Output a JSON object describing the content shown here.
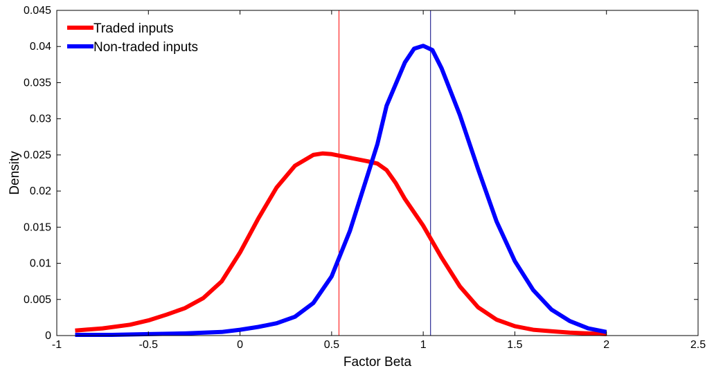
{
  "chart_data": {
    "type": "line",
    "title": "",
    "xlabel": "Factor Beta",
    "ylabel": "Density",
    "xlim": [
      -1,
      2.5
    ],
    "ylim": [
      0,
      0.045
    ],
    "xticks": [
      -1,
      -0.5,
      0,
      0.5,
      1,
      1.5,
      2,
      2.5
    ],
    "xtick_labels": [
      "-1",
      "-0.5",
      "0",
      "0.5",
      "1",
      "1.5",
      "2",
      "2.5"
    ],
    "yticks": [
      0,
      0.005,
      0.01,
      0.015,
      0.02,
      0.025,
      0.03,
      0.035,
      0.04,
      0.045
    ],
    "ytick_labels": [
      "0",
      "0.005",
      "0.01",
      "0.015",
      "0.02",
      "0.025",
      "0.03",
      "0.035",
      "0.04",
      "0.045"
    ],
    "grid": false,
    "legend_position": "top-left",
    "series": [
      {
        "name": "Traded inputs",
        "color": "#ff0000",
        "x": [
          -0.9,
          -0.75,
          -0.6,
          -0.5,
          -0.4,
          -0.3,
          -0.2,
          -0.1,
          0,
          0.1,
          0.2,
          0.3,
          0.4,
          0.45,
          0.5,
          0.6,
          0.7,
          0.75,
          0.8,
          0.85,
          0.9,
          1.0,
          1.1,
          1.2,
          1.3,
          1.4,
          1.5,
          1.6,
          1.7,
          1.8,
          1.9,
          2.0
        ],
        "y": [
          0.0007,
          0.001,
          0.0015,
          0.0021,
          0.0029,
          0.0038,
          0.0052,
          0.0075,
          0.0115,
          0.0162,
          0.0205,
          0.0235,
          0.025,
          0.0252,
          0.0251,
          0.0246,
          0.0241,
          0.0238,
          0.0229,
          0.0211,
          0.0189,
          0.0152,
          0.0108,
          0.0068,
          0.0039,
          0.0022,
          0.0013,
          0.0008,
          0.0006,
          0.0004,
          0.0003,
          0.0002
        ]
      },
      {
        "name": "Non-traded inputs",
        "color": "#0000ff",
        "x": [
          -0.9,
          -0.7,
          -0.5,
          -0.3,
          -0.1,
          0,
          0.1,
          0.2,
          0.3,
          0.4,
          0.5,
          0.6,
          0.7,
          0.75,
          0.8,
          0.9,
          0.95,
          1.0,
          1.05,
          1.1,
          1.2,
          1.3,
          1.4,
          1.5,
          1.6,
          1.7,
          1.8,
          1.9,
          2.0
        ],
        "y": [
          0.0001,
          0.0001,
          0.0002,
          0.0003,
          0.0005,
          0.0008,
          0.0012,
          0.0017,
          0.0026,
          0.0045,
          0.0082,
          0.0145,
          0.0225,
          0.0265,
          0.0318,
          0.0378,
          0.0397,
          0.0401,
          0.0395,
          0.037,
          0.0305,
          0.023,
          0.0158,
          0.0103,
          0.0063,
          0.0036,
          0.002,
          0.001,
          0.0005
        ]
      }
    ],
    "vertical_lines": [
      {
        "x": 0.54,
        "color": "#ff0000"
      },
      {
        "x": 1.04,
        "color": "#000080"
      }
    ]
  }
}
